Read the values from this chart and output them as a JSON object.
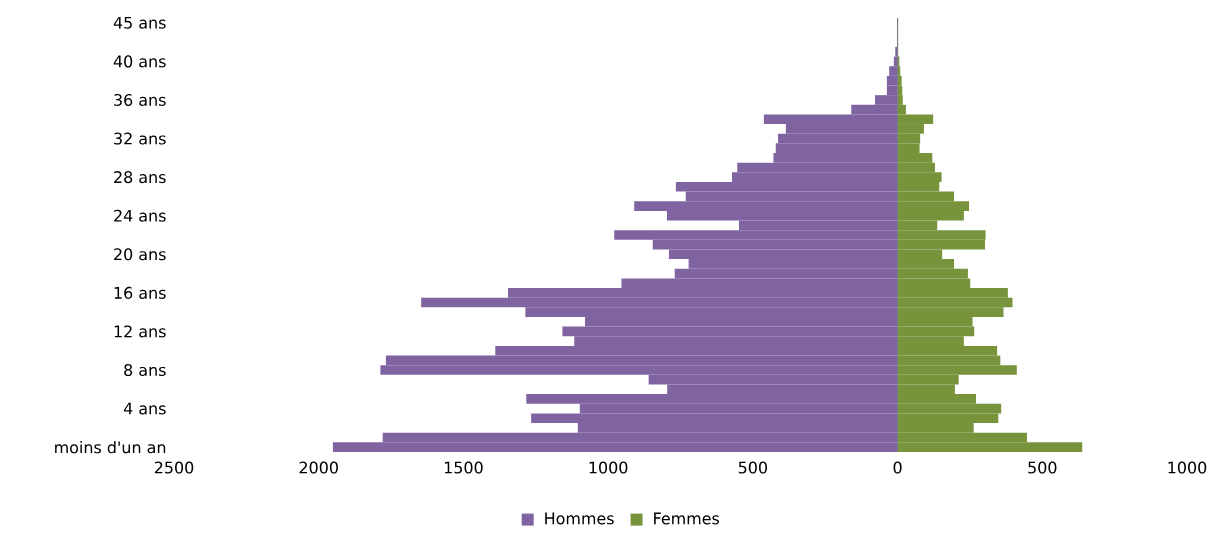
{
  "chart_data": {
    "type": "bar",
    "orientation": "horizontal",
    "categories": [
      "45 ans",
      null,
      null,
      null,
      "40 ans",
      null,
      null,
      null,
      "36 ans",
      null,
      null,
      null,
      "32 ans",
      null,
      null,
      null,
      "28 ans",
      null,
      null,
      null,
      "24 ans",
      null,
      null,
      null,
      "20 ans",
      null,
      null,
      null,
      "16 ans",
      null,
      null,
      null,
      "12 ans",
      null,
      null,
      null,
      "8 ans",
      null,
      null,
      null,
      "4 ans",
      null,
      null,
      null,
      "moins d'un an"
    ],
    "series": [
      {
        "name": "Hommes",
        "color": "#8064a2",
        "values": [
          0,
          0,
          null,
          -8,
          -13,
          -29,
          -37,
          -37,
          -78,
          -160,
          -462,
          -386,
          -413,
          -421,
          -429,
          -554,
          -572,
          -766,
          -732,
          -910,
          -797,
          -548,
          -979,
          -846,
          -790,
          -722,
          -770,
          -954,
          -1346,
          -1646,
          -1286,
          -1080,
          -1158,
          -1117,
          -1390,
          -1768,
          -1787,
          -860,
          -796,
          -1283,
          -1098,
          -1266,
          -1105,
          -1779,
          -1951
        ]
      },
      {
        "name": "Femmes",
        "color": "#77933c",
        "values": [
          0,
          0,
          null,
          null,
          6,
          9,
          14,
          16,
          18,
          29,
          123,
          91,
          78,
          76,
          120,
          129,
          152,
          144,
          195,
          247,
          229,
          137,
          304,
          302,
          154,
          195,
          243,
          251,
          381,
          397,
          366,
          259,
          265,
          229,
          344,
          355,
          412,
          211,
          198,
          271,
          358,
          348,
          263,
          447,
          638
        ]
      }
    ],
    "xlim": [
      -2500,
      1000
    ],
    "xticks": [
      {
        "value": -2500,
        "label": "2500"
      },
      {
        "value": -2000,
        "label": "2000"
      },
      {
        "value": -1500,
        "label": "1500"
      },
      {
        "value": -1000,
        "label": "1000"
      },
      {
        "value": -500,
        "label": "500"
      },
      0,
      500,
      1000
    ],
    "ref_lines": [
      {
        "axis": "x",
        "value": 0,
        "color": "#7f7f7f"
      }
    ],
    "stacked": true,
    "legend": "bottom",
    "grid": false
  }
}
